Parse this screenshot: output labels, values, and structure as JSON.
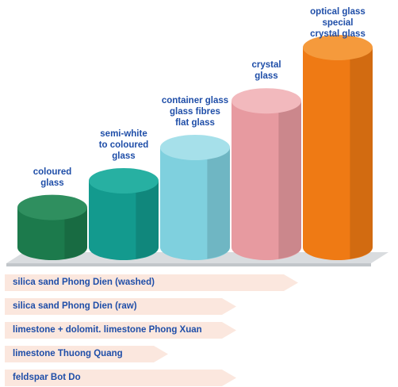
{
  "bars": [
    {
      "label": "coloured\nglass",
      "level": 0.18,
      "color_front": "#1c7a4c",
      "color_top": "#2f8f5f"
    },
    {
      "label": "semi-white\nto coloured\nglass",
      "level": 0.3,
      "color_front": "#139a8e",
      "color_top": "#27b0a2"
    },
    {
      "label": "container glass\nglass fibres\nflat glass",
      "level": 0.45,
      "color_front": "#7fd0de",
      "color_top": "#a6e0ea"
    },
    {
      "label": "crystal\nglass",
      "level": 0.66,
      "color_front": "#e79aa0",
      "color_top": "#f2b9bd"
    },
    {
      "label": "optical glass\nspecial crystal glass",
      "level": 0.9,
      "color_front": "#ef7a14",
      "color_top": "#f59a3c"
    }
  ],
  "materials": [
    {
      "label": "silica sand Phong Dien (washed)",
      "reach": 0.86
    },
    {
      "label": "silica sand Phong Dien (raw)",
      "reach": 0.68
    },
    {
      "label": "limestone + dolomit. limestone Phong Xuan",
      "reach": 0.68
    },
    {
      "label": "limestone Thuong Quang",
      "reach": 0.48
    },
    {
      "label": "feldspar Bot Do",
      "reach": 0.68
    }
  ],
  "colors": {
    "label_text": "#1f4ea8",
    "arrow_fill": "#fbe7de",
    "floor": "#d9dcdf"
  }
}
